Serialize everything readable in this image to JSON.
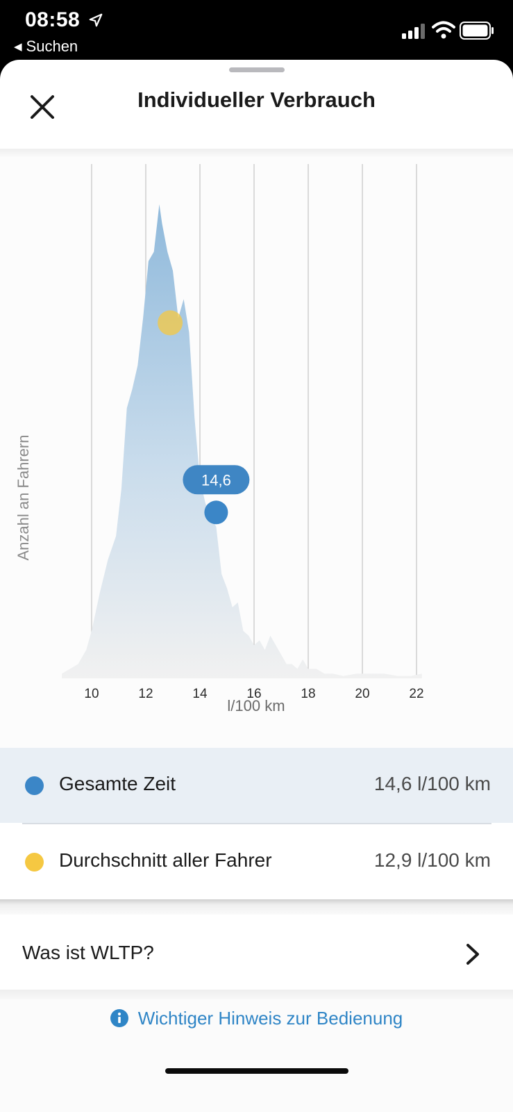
{
  "status_bar": {
    "time": "08:58",
    "back_label": "Suchen"
  },
  "header": {
    "title": "Individueller Verbrauch"
  },
  "chart_data": {
    "type": "area",
    "xlabel": "l/100 km",
    "ylabel": "Anzahl an Fahrern",
    "x_ticks": [
      "10",
      "12",
      "14",
      "16",
      "18",
      "20",
      "22"
    ],
    "xlim": [
      8.7,
      22.5
    ],
    "ylim": [
      0,
      100
    ],
    "distribution": {
      "x": [
        8.9,
        9.2,
        9.5,
        9.8,
        10.0,
        10.3,
        10.6,
        10.9,
        11.1,
        11.3,
        11.5,
        11.7,
        11.9,
        12.1,
        12.3,
        12.5,
        12.6,
        12.8,
        13.0,
        13.2,
        13.4,
        13.6,
        13.8,
        14.0,
        14.2,
        14.4,
        14.6,
        14.8,
        15.0,
        15.2,
        15.4,
        15.6,
        15.8,
        16.0,
        16.2,
        16.4,
        16.6,
        16.8,
        17.0,
        17.2,
        17.4,
        17.6,
        17.8,
        18.0,
        18.3,
        18.6,
        18.9,
        19.3,
        19.8,
        20.3,
        20.8,
        21.3,
        21.8,
        22.2
      ],
      "y": [
        1,
        2,
        3,
        6,
        10,
        18,
        25,
        30,
        40,
        57,
        61,
        66,
        76,
        88,
        90,
        100,
        96,
        90,
        86,
        76,
        80,
        73,
        55,
        42,
        37,
        34,
        32,
        22,
        19,
        15,
        16,
        10,
        9,
        7,
        8,
        6,
        9,
        7,
        5,
        3,
        3,
        2,
        4,
        2,
        2,
        1,
        1,
        0.5,
        1,
        1,
        1,
        0.5,
        0.5,
        1
      ]
    },
    "callout": "14,6",
    "series": [
      {
        "name": "Gesamte Zeit",
        "x": 14.6,
        "y": 35,
        "color": "#3b86c7"
      },
      {
        "name": "Durchschnitt aller Fahrer",
        "x": 12.9,
        "y": 75,
        "color": "#f5c842"
      }
    ]
  },
  "legend": {
    "rows": [
      {
        "label": "Gesamte Zeit",
        "value": "14,6 l/100 km",
        "color": "#3b86c7"
      },
      {
        "label": "Durchschnitt aller Fahrer",
        "value": "12,9 l/100 km",
        "color": "#f5c842"
      }
    ]
  },
  "wltp": {
    "label": "Was ist WLTP?"
  },
  "footer": {
    "hint": "Wichtiger Hinweis zur Bedienung"
  },
  "colors": {
    "accent": "#2f85c6",
    "area_top": "#8fb9db",
    "area_bottom": "#f1f1f1"
  }
}
